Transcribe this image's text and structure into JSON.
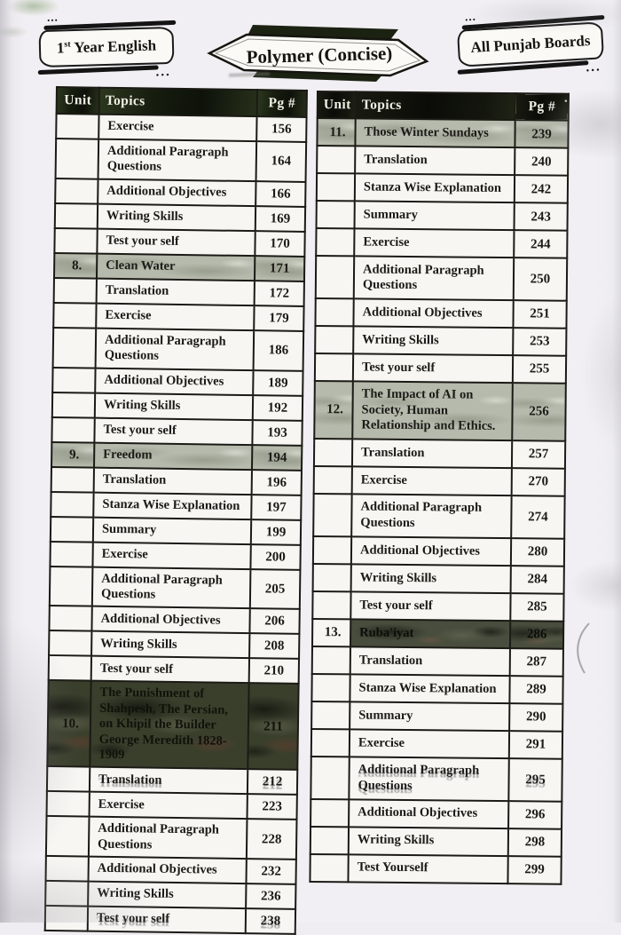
{
  "badges": {
    "left_prefix": "1",
    "left_sup": "st",
    "left_rest": " Year English",
    "center": "Polymer (Concise)",
    "right": "All Punjab Boards"
  },
  "headers": {
    "unit": "Unit",
    "topics": "Topics",
    "pg": "Pg #"
  },
  "left_table": {
    "rows": [
      {
        "unit": "",
        "topic": "Exercise",
        "pg": "156"
      },
      {
        "unit": "",
        "topic": "Additional Paragraph Questions",
        "pg": "164"
      },
      {
        "unit": "",
        "topic": "Additional Objectives",
        "pg": "166"
      },
      {
        "unit": "",
        "topic": "Writing Skills",
        "pg": "169"
      },
      {
        "unit": "",
        "topic": "Test your self",
        "pg": "170"
      },
      {
        "unit": "8.",
        "topic": "Clean Water",
        "pg": "171",
        "hl": "light"
      },
      {
        "unit": "",
        "topic": "Translation",
        "pg": "172"
      },
      {
        "unit": "",
        "topic": "Exercise",
        "pg": "179"
      },
      {
        "unit": "",
        "topic": "Additional Paragraph Questions",
        "pg": "186"
      },
      {
        "unit": "",
        "topic": "Additional Objectives",
        "pg": "189"
      },
      {
        "unit": "",
        "topic": "Writing Skills",
        "pg": "192"
      },
      {
        "unit": "",
        "topic": "Test your self",
        "pg": "193"
      },
      {
        "unit": "9.",
        "topic": "Freedom",
        "pg": "194",
        "hl": "light"
      },
      {
        "unit": "",
        "topic": "Translation",
        "pg": "196"
      },
      {
        "unit": "",
        "topic": "Stanza Wise Explanation",
        "pg": "197"
      },
      {
        "unit": "",
        "topic": "Summary",
        "pg": "199"
      },
      {
        "unit": "",
        "topic": "Exercise",
        "pg": "200"
      },
      {
        "unit": "",
        "topic": "Additional Paragraph Questions",
        "pg": "205"
      },
      {
        "unit": "",
        "topic": "Additional Objectives",
        "pg": "206"
      },
      {
        "unit": "",
        "topic": "Writing Skills",
        "pg": "208"
      },
      {
        "unit": "",
        "topic": "Test your self",
        "pg": "210"
      },
      {
        "unit": "10.",
        "topic": "The Punishment of Shahpesh, The Persian, on Khipil the Builder George Meredith 1828-1909",
        "pg": "211",
        "hl": "dark"
      },
      {
        "unit": "",
        "topic": "Translation",
        "pg": "212",
        "ghost": true
      },
      {
        "unit": "",
        "topic": "Exercise",
        "pg": "223"
      },
      {
        "unit": "",
        "topic": "Additional Paragraph Questions",
        "pg": "228"
      },
      {
        "unit": "",
        "topic": "Additional Objectives",
        "pg": "232"
      },
      {
        "unit": "",
        "topic": "Writing Skills",
        "pg": "236"
      },
      {
        "unit": "",
        "topic": "Test your self",
        "pg": "238",
        "ghost": true
      }
    ]
  },
  "right_table": {
    "rows": [
      {
        "unit": "11.",
        "topic": "Those Winter Sundays",
        "pg": "239",
        "hl": "light"
      },
      {
        "unit": "",
        "topic": "Translation",
        "pg": "240"
      },
      {
        "unit": "",
        "topic": "Stanza Wise Explanation",
        "pg": "242"
      },
      {
        "unit": "",
        "topic": "Summary",
        "pg": "243"
      },
      {
        "unit": "",
        "topic": "Exercise",
        "pg": "244"
      },
      {
        "unit": "",
        "topic": "Additional Paragraph Questions",
        "pg": "250"
      },
      {
        "unit": "",
        "topic": "Additional Objectives",
        "pg": "251"
      },
      {
        "unit": "",
        "topic": "Writing Skills",
        "pg": "253"
      },
      {
        "unit": "",
        "topic": "Test your self",
        "pg": "255"
      },
      {
        "unit": "12.",
        "topic": "The Impact of AI on Society, Human Relationship and Ethics.",
        "pg": "256",
        "hl": "light"
      },
      {
        "unit": "",
        "topic": "Translation",
        "pg": "257"
      },
      {
        "unit": "",
        "topic": "Exercise",
        "pg": "270"
      },
      {
        "unit": "",
        "topic": "Additional Paragraph Questions",
        "pg": "274"
      },
      {
        "unit": "",
        "topic": "Additional Objectives",
        "pg": "280"
      },
      {
        "unit": "",
        "topic": "Writing Skills",
        "pg": "284"
      },
      {
        "unit": "",
        "topic": "Test your self",
        "pg": "285"
      },
      {
        "unit": "13.",
        "topic": "Ruba'iyat",
        "pg": "286",
        "hl": "dark13"
      },
      {
        "unit": "",
        "topic": "Translation",
        "pg": "287"
      },
      {
        "unit": "",
        "topic": "Stanza Wise Explanation",
        "pg": "289"
      },
      {
        "unit": "",
        "topic": "Summary",
        "pg": "290"
      },
      {
        "unit": "",
        "topic": "Exercise",
        "pg": "291"
      },
      {
        "unit": "",
        "topic": "Additional Paragraph Questions",
        "pg": "295",
        "ghost": true
      },
      {
        "unit": "",
        "topic": "Additional Objectives",
        "pg": "296"
      },
      {
        "unit": "",
        "topic": "Writing Skills",
        "pg": "298"
      },
      {
        "unit": "",
        "topic": "Test Yourself",
        "pg": "299"
      }
    ]
  }
}
